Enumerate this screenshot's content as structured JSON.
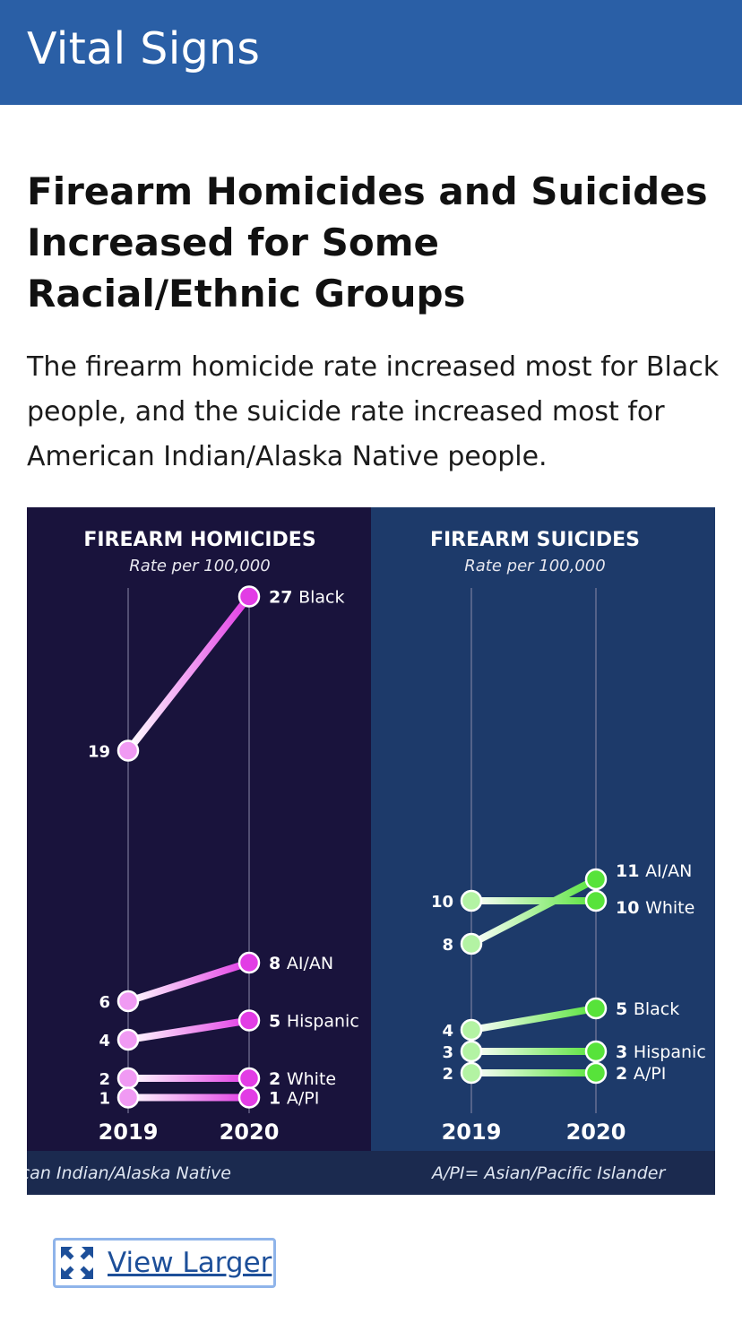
{
  "header": {
    "title": "Vital Signs"
  },
  "article": {
    "headline": "Firearm Homicides and Suicides Increased for Some Racial/Ethnic Groups",
    "lede": "The firearm homicide rate increased most for Black people, and the suicide rate increased most for American Indian/Alaska Native people."
  },
  "view_larger": {
    "label": "View Larger",
    "icon": "expand-icon"
  },
  "colors": {
    "homicide_bg": "#19133c",
    "suicide_bg": "#1d3a6a",
    "homicide_accent": "#e23de5",
    "homicide_light": "#f09af3",
    "suicide_accent": "#57e33a",
    "suicide_light": "#b3f3a3",
    "footnote_bg": "#1b2a4f"
  },
  "chart_data": [
    {
      "type": "line",
      "title": "FIREARM HOMICIDES",
      "subtitle": "Rate per 100,000",
      "x": [
        "2019",
        "2020"
      ],
      "series": [
        {
          "name": "Black",
          "values": [
            19,
            27
          ]
        },
        {
          "name": "AI/AN",
          "values": [
            6,
            8
          ]
        },
        {
          "name": "Hispanic",
          "values": [
            4,
            5
          ]
        },
        {
          "name": "White",
          "values": [
            2,
            2
          ]
        },
        {
          "name": "A/PI",
          "values": [
            1,
            1
          ]
        }
      ]
    },
    {
      "type": "line",
      "title": "FIREARM SUICIDES",
      "subtitle": "Rate per 100,000",
      "x": [
        "2019",
        "2020"
      ],
      "series": [
        {
          "name": "AI/AN",
          "values": [
            8,
            11
          ]
        },
        {
          "name": "White",
          "values": [
            10,
            10
          ]
        },
        {
          "name": "Black",
          "values": [
            4,
            5
          ]
        },
        {
          "name": "Hispanic",
          "values": [
            3,
            3
          ]
        },
        {
          "name": "A/PI",
          "values": [
            2,
            2
          ]
        }
      ]
    }
  ],
  "footnote": {
    "aian": "AI/AN = American Indian/Alaska Native",
    "api": "A/PI= Asian/Pacific Islander"
  }
}
